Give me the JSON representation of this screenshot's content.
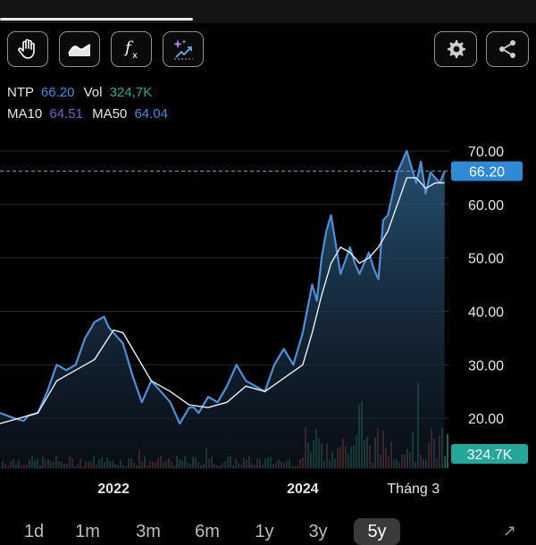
{
  "toolbar": {
    "tools": [
      {
        "name": "hand-icon"
      },
      {
        "name": "chart-style-icon"
      },
      {
        "name": "function-icon"
      },
      {
        "name": "ai-sparkle-icon"
      }
    ],
    "right": [
      {
        "name": "gear-icon"
      },
      {
        "name": "share-icon"
      }
    ]
  },
  "info": {
    "symbol": "NTP",
    "price": "66.20",
    "vol_label": "Vol",
    "vol": "324,7K",
    "ma10_label": "MA10",
    "ma10": "64.51",
    "ma50_label": "MA50",
    "ma50": "64.04"
  },
  "colors": {
    "price": "#3d8bd9",
    "volume": "#26a69a",
    "ma10": "#7b5ec9",
    "ma50": "#3d8bd9",
    "line": "#4e8fd9",
    "ma_line": "#e8f0ff",
    "vol_up": "#2e8b6e",
    "vol_down": "#b0403c"
  },
  "chart_data": {
    "type": "area",
    "y_ticks": [
      "70.00",
      "60.00",
      "50.00",
      "40.00",
      "30.00",
      "20.00"
    ],
    "y_tick_values": [
      70,
      60,
      50,
      40,
      30,
      20
    ],
    "ylim": [
      10.5,
      73.5
    ],
    "x_ticks": [
      {
        "label": "2022",
        "t": 2022.0
      },
      {
        "label": "2024",
        "t": 2024.0
      },
      {
        "label": "Tháng 3",
        "t": 2025.17
      }
    ],
    "xlim": [
      2020.8,
      2025.55
    ],
    "price_tag": "66.20",
    "price_value": 66.2,
    "volume_tag": "324.7K",
    "series": [
      {
        "name": "NTP",
        "x": [
          2020.8,
          2020.95,
          2021.05,
          2021.1,
          2021.2,
          2021.3,
          2021.4,
          2021.5,
          2021.6,
          2021.7,
          2021.8,
          2021.9,
          2021.95,
          2022.0,
          2022.1,
          2022.2,
          2022.3,
          2022.4,
          2022.5,
          2022.6,
          2022.7,
          2022.8,
          2022.85,
          2022.9,
          2023.0,
          2023.1,
          2023.2,
          2023.3,
          2023.4,
          2023.5,
          2023.6,
          2023.7,
          2023.8,
          2023.9,
          2024.0,
          2024.1,
          2024.15,
          2024.2,
          2024.25,
          2024.3,
          2024.4,
          2024.5,
          2024.55,
          2024.6,
          2024.7,
          2024.75,
          2024.8,
          2024.85,
          2024.9,
          2025.0,
          2025.05,
          2025.1,
          2025.15,
          2025.2,
          2025.25,
          2025.3,
          2025.35,
          2025.4,
          2025.45,
          2025.5
        ],
        "values": [
          21,
          20,
          19.5,
          20.5,
          21,
          25,
          30,
          29,
          30,
          35,
          38,
          39,
          37,
          36,
          34,
          28,
          23,
          27,
          25,
          23,
          19,
          22,
          22,
          21,
          24,
          23,
          26,
          30,
          27,
          26,
          25,
          30,
          33,
          30,
          36,
          45,
          42,
          50,
          55,
          58,
          47,
          52,
          49,
          47,
          51,
          48,
          46,
          57,
          58,
          66,
          68,
          70,
          67,
          64,
          68,
          62,
          66,
          65,
          64,
          66.2
        ]
      },
      {
        "name": "MA",
        "x": [
          2020.8,
          2021.0,
          2021.2,
          2021.4,
          2021.6,
          2021.8,
          2022.0,
          2022.1,
          2022.2,
          2022.4,
          2022.5,
          2022.6,
          2022.8,
          2023.0,
          2023.2,
          2023.4,
          2023.6,
          2023.8,
          2024.0,
          2024.1,
          2024.2,
          2024.3,
          2024.4,
          2024.5,
          2024.6,
          2024.7,
          2024.8,
          2024.9,
          2025.0,
          2025.1,
          2025.2,
          2025.3,
          2025.4,
          2025.5
        ],
        "values": [
          19,
          20,
          21,
          27,
          29,
          31,
          36.5,
          36,
          33,
          27,
          26,
          25,
          22.5,
          22,
          23,
          26,
          25,
          27.5,
          30,
          36,
          43,
          49,
          52,
          51,
          49,
          50,
          52,
          55,
          60,
          65,
          65,
          63,
          64,
          64.04
        ]
      }
    ]
  },
  "periods": {
    "items": [
      "1d",
      "1m",
      "3m",
      "6m",
      "1y",
      "3y",
      "5y"
    ],
    "active": 6
  }
}
